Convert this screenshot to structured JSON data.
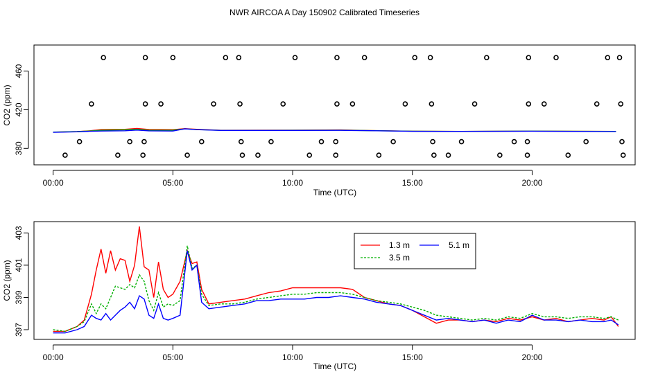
{
  "figure": {
    "title": "NWR AIRCOA A  Day 150902  Calibrated Timeseries"
  },
  "chart_data": [
    {
      "type": "line+scatter",
      "xlabel": "Time (UTC)",
      "ylabel": "CO2 (ppm)",
      "xlim": [
        -0.8,
        24.3
      ],
      "ylim": [
        363,
        487
      ],
      "xticks": [
        0,
        5,
        10,
        15,
        20
      ],
      "xtick_labels": [
        "00:00",
        "05:00",
        "10:00",
        "15:00",
        "20:00"
      ],
      "yticks": [
        380,
        420,
        460
      ],
      "ytick_labels": [
        "380",
        "420",
        "460"
      ],
      "grid": false,
      "legend": null,
      "colors": {
        "1.3 m": "#ff0000",
        "3.5 m": "#00c000",
        "5.1 m": "#0000ff",
        "markers": "#000000"
      },
      "marker_points": {
        "x": [
          2.1,
          3.85,
          5.0,
          7.2,
          7.75,
          10.1,
          11.85,
          13.0,
          15.1,
          15.75,
          18.1,
          19.85,
          21.0,
          23.15,
          23.65,
          1.6,
          3.85,
          4.5,
          6.7,
          7.8,
          9.6,
          11.85,
          12.5,
          14.7,
          15.8,
          17.6,
          19.85,
          20.5,
          22.7,
          23.7,
          1.1,
          3.2,
          3.8,
          6.2,
          7.85,
          9.1,
          11.2,
          11.8,
          14.2,
          15.85,
          17.05,
          19.25,
          19.8,
          22.25,
          23.75,
          0.5,
          2.7,
          3.75,
          5.6,
          7.9,
          8.55,
          10.7,
          11.8,
          13.6,
          15.9,
          16.5,
          18.65,
          19.8,
          21.5,
          23.8
        ],
        "y": [
          474,
          474,
          474,
          474,
          474,
          474,
          474,
          474,
          474,
          474,
          474,
          474,
          474,
          474,
          474,
          426,
          426,
          426,
          426,
          426,
          426,
          426,
          426,
          426,
          426,
          426,
          426,
          426,
          426,
          426,
          387,
          387,
          387,
          387,
          387,
          387,
          387,
          387,
          387,
          387,
          387,
          387,
          387,
          387,
          387,
          373,
          373,
          373,
          373,
          373,
          373,
          373,
          373,
          373,
          373,
          373,
          373,
          373,
          373,
          373
        ]
      },
      "series": [
        {
          "name": "1.3 m",
          "x": [
            0,
            1,
            1.5,
            2,
            3,
            3.5,
            4,
            5,
            5.5,
            6,
            7,
            10,
            12,
            13,
            15,
            17,
            20,
            23.5
          ],
          "y": [
            396.8,
            397.5,
            398.2,
            399.5,
            399.8,
            400.6,
            399.6,
            399.4,
            400.5,
            399.8,
            398.8,
            398.9,
            399.1,
            398.6,
            397.8,
            397.6,
            397.9,
            397.6
          ]
        },
        {
          "name": "3.5 m",
          "x": [
            0,
            1,
            1.5,
            2,
            3,
            3.5,
            4,
            5,
            5.5,
            6,
            7,
            10,
            12,
            13,
            15,
            17,
            20,
            23.5
          ],
          "y": [
            396.9,
            397.4,
            398.0,
            398.8,
            399.3,
            399.8,
            398.8,
            398.9,
            400.2,
            399.5,
            398.7,
            398.8,
            398.9,
            398.5,
            397.8,
            397.6,
            397.9,
            397.6
          ]
        },
        {
          "name": "5.1 m",
          "x": [
            0,
            1,
            1.5,
            2,
            3,
            3.5,
            4,
            5,
            5.5,
            6,
            7,
            10,
            12,
            13,
            15,
            17,
            20,
            23.5
          ],
          "y": [
            396.7,
            397.2,
            397.7,
            398.0,
            398.3,
            399.0,
            398.2,
            398.0,
            400.3,
            399.4,
            398.6,
            398.6,
            398.7,
            398.4,
            397.7,
            397.6,
            397.8,
            397.5
          ]
        }
      ]
    },
    {
      "type": "line",
      "xlabel": "Time (UTC)",
      "ylabel": "CO2 (ppm)",
      "xlim": [
        -0.8,
        24.3
      ],
      "ylim": [
        396.4,
        403.7
      ],
      "xticks": [
        0,
        5,
        10,
        15,
        20
      ],
      "xtick_labels": [
        "00:00",
        "05:00",
        "10:00",
        "15:00",
        "20:00"
      ],
      "yticks": [
        397,
        399,
        401,
        403
      ],
      "ytick_labels": [
        "397",
        "399",
        "401",
        "403"
      ],
      "grid": false,
      "legend": "inside, upper center",
      "series": [
        {
          "name": "1.3 m",
          "color": "#ff0000",
          "dash": "",
          "x": [
            0,
            0.5,
            1,
            1.3,
            1.6,
            1.8,
            2.0,
            2.2,
            2.4,
            2.6,
            2.8,
            3.0,
            3.2,
            3.4,
            3.6,
            3.8,
            4.0,
            4.2,
            4.4,
            4.6,
            4.8,
            5.0,
            5.3,
            5.6,
            5.8,
            6.0,
            6.2,
            6.5,
            7.0,
            7.5,
            8,
            8.5,
            9,
            9.5,
            10,
            10.5,
            11,
            11.5,
            12,
            12.5,
            13,
            13.5,
            14,
            14.5,
            15,
            15.5,
            16,
            16.5,
            17,
            17.5,
            18,
            18.5,
            19,
            19.5,
            20,
            20.5,
            21,
            21.5,
            22,
            22.5,
            23,
            23.3,
            23.6
          ],
          "y": [
            396.9,
            396.9,
            397.2,
            397.6,
            399.2,
            400.7,
            402.0,
            400.5,
            401.9,
            400.7,
            401.4,
            401.3,
            400.0,
            401.0,
            403.4,
            400.9,
            400.7,
            399.0,
            401.2,
            399.5,
            399.0,
            399.2,
            400.0,
            401.9,
            401.1,
            401.2,
            399.5,
            398.6,
            398.7,
            398.8,
            398.9,
            399.1,
            399.3,
            399.4,
            399.6,
            399.6,
            399.6,
            399.6,
            399.6,
            399.5,
            399.0,
            398.8,
            398.6,
            398.5,
            398.2,
            397.8,
            397.4,
            397.6,
            397.6,
            397.5,
            397.6,
            397.5,
            397.7,
            397.6,
            397.8,
            397.6,
            397.7,
            397.5,
            397.6,
            397.7,
            397.6,
            397.8,
            397.2
          ]
        },
        {
          "name": "3.5 m",
          "color": "#00b000",
          "dash": "3,2",
          "x": [
            0,
            0.5,
            1,
            1.3,
            1.6,
            1.8,
            2.0,
            2.2,
            2.4,
            2.6,
            2.8,
            3.0,
            3.2,
            3.4,
            3.6,
            3.8,
            4.0,
            4.2,
            4.4,
            4.6,
            4.8,
            5.0,
            5.3,
            5.6,
            5.8,
            6.0,
            6.2,
            6.5,
            7.0,
            7.5,
            8,
            8.5,
            9,
            9.5,
            10,
            10.5,
            11,
            11.5,
            12,
            12.5,
            13,
            13.5,
            14,
            14.5,
            15,
            15.5,
            16,
            16.5,
            17,
            17.5,
            18,
            18.5,
            19,
            19.5,
            20,
            20.5,
            21,
            21.5,
            22,
            22.5,
            23,
            23.3,
            23.6
          ],
          "y": [
            397.0,
            396.9,
            397.2,
            397.5,
            398.6,
            398.0,
            398.6,
            398.3,
            399.0,
            399.7,
            399.6,
            399.5,
            399.8,
            399.6,
            400.4,
            400.0,
            398.8,
            398.2,
            399.3,
            398.4,
            398.6,
            398.5,
            398.8,
            402.2,
            400.8,
            401.0,
            399.2,
            398.5,
            398.6,
            398.6,
            398.7,
            398.9,
            399.0,
            399.1,
            399.2,
            399.2,
            399.3,
            399.3,
            399.3,
            399.2,
            399.0,
            398.8,
            398.7,
            398.6,
            398.4,
            398.2,
            397.9,
            397.8,
            397.7,
            397.6,
            397.7,
            397.6,
            397.8,
            397.7,
            398.0,
            397.8,
            397.8,
            397.7,
            397.8,
            397.8,
            397.7,
            397.8,
            397.6
          ]
        },
        {
          "name": "5.1 m",
          "color": "#0000ff",
          "dash": "",
          "x": [
            0,
            0.5,
            1,
            1.3,
            1.6,
            1.8,
            2.0,
            2.2,
            2.4,
            2.6,
            2.8,
            3.0,
            3.2,
            3.4,
            3.6,
            3.8,
            4.0,
            4.2,
            4.4,
            4.6,
            4.8,
            5.0,
            5.3,
            5.6,
            5.8,
            6.0,
            6.2,
            6.5,
            7.0,
            7.5,
            8,
            8.5,
            9,
            9.5,
            10,
            10.5,
            11,
            11.5,
            12,
            12.5,
            13,
            13.5,
            14,
            14.5,
            15,
            15.5,
            16,
            16.5,
            17,
            17.5,
            18,
            18.5,
            19,
            19.5,
            20,
            20.5,
            21,
            21.5,
            22,
            22.5,
            23,
            23.3,
            23.6
          ],
          "y": [
            396.8,
            396.8,
            397.0,
            397.2,
            397.9,
            397.7,
            397.6,
            398.0,
            397.6,
            397.9,
            398.2,
            398.4,
            398.7,
            398.3,
            399.1,
            398.9,
            397.9,
            397.7,
            398.6,
            397.7,
            397.6,
            397.7,
            397.9,
            401.9,
            400.7,
            401.0,
            398.7,
            398.3,
            398.4,
            398.5,
            398.6,
            398.8,
            398.8,
            398.9,
            398.9,
            398.9,
            399.0,
            399.0,
            399.1,
            399.0,
            398.9,
            398.7,
            398.6,
            398.5,
            398.2,
            397.9,
            397.6,
            397.7,
            397.6,
            397.5,
            397.6,
            397.4,
            397.6,
            397.5,
            397.9,
            397.6,
            397.6,
            397.5,
            397.6,
            397.5,
            397.5,
            397.6,
            397.3
          ]
        }
      ]
    }
  ]
}
